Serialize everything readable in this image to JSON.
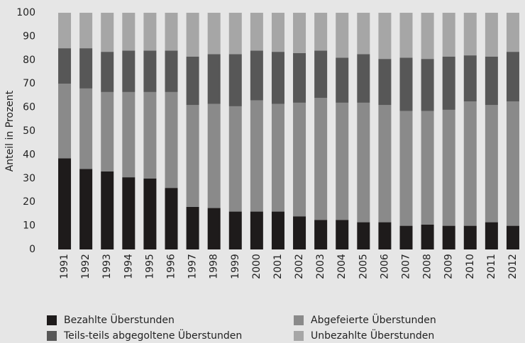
{
  "chart_data": {
    "type": "stacked_bar",
    "y_label": "Anteil in Prozent",
    "categories": [
      "1991",
      "1992",
      "1993",
      "1994",
      "1995",
      "1996",
      "1997",
      "1998",
      "1999",
      "2000",
      "2001",
      "2002",
      "2003",
      "2004",
      "2005",
      "2006",
      "2007",
      "2008",
      "2009",
      "2010",
      "2011",
      "2012"
    ],
    "series": [
      {
        "name": "Bezahlte Überstunden",
        "color": "#1e1b1b",
        "values": [
          38.5,
          34,
          33,
          30.5,
          30,
          26,
          18,
          17.5,
          16,
          16,
          16,
          14,
          12.5,
          12.5,
          11.5,
          11.5,
          10,
          10.5,
          10,
          10,
          11.5,
          10
        ]
      },
      {
        "name": "Abgefeierte Überstunden",
        "color": "#8a8a8a",
        "values": [
          31.5,
          34,
          33.5,
          36,
          36.5,
          40.5,
          43,
          44,
          44.5,
          47,
          45.5,
          48,
          51.5,
          49.5,
          50.5,
          49.5,
          48.5,
          48,
          49,
          52.5,
          49.5,
          52.5
        ]
      },
      {
        "name": "Teils-teils abgegoltene Überstunden",
        "color": "#575757",
        "values": [
          15,
          17,
          17,
          17.5,
          17.5,
          17.5,
          20.5,
          21,
          22,
          21,
          22,
          21,
          20,
          19,
          20.5,
          19.5,
          22.5,
          22,
          22.5,
          19.5,
          20.5,
          21
        ]
      },
      {
        "name": "Unbezahlte Überstunden",
        "color": "#a6a6a6",
        "values": [
          15,
          15,
          16.5,
          16,
          16,
          16,
          18.5,
          17.5,
          17.5,
          16,
          16.5,
          17,
          16,
          19,
          17.5,
          19.5,
          19,
          19.5,
          18.5,
          18,
          18.5,
          16.5
        ]
      }
    ],
    "ylim": [
      0,
      100
    ],
    "yticks": [
      0,
      10,
      20,
      30,
      40,
      50,
      60,
      70,
      80,
      90,
      100
    ],
    "grid": false
  }
}
